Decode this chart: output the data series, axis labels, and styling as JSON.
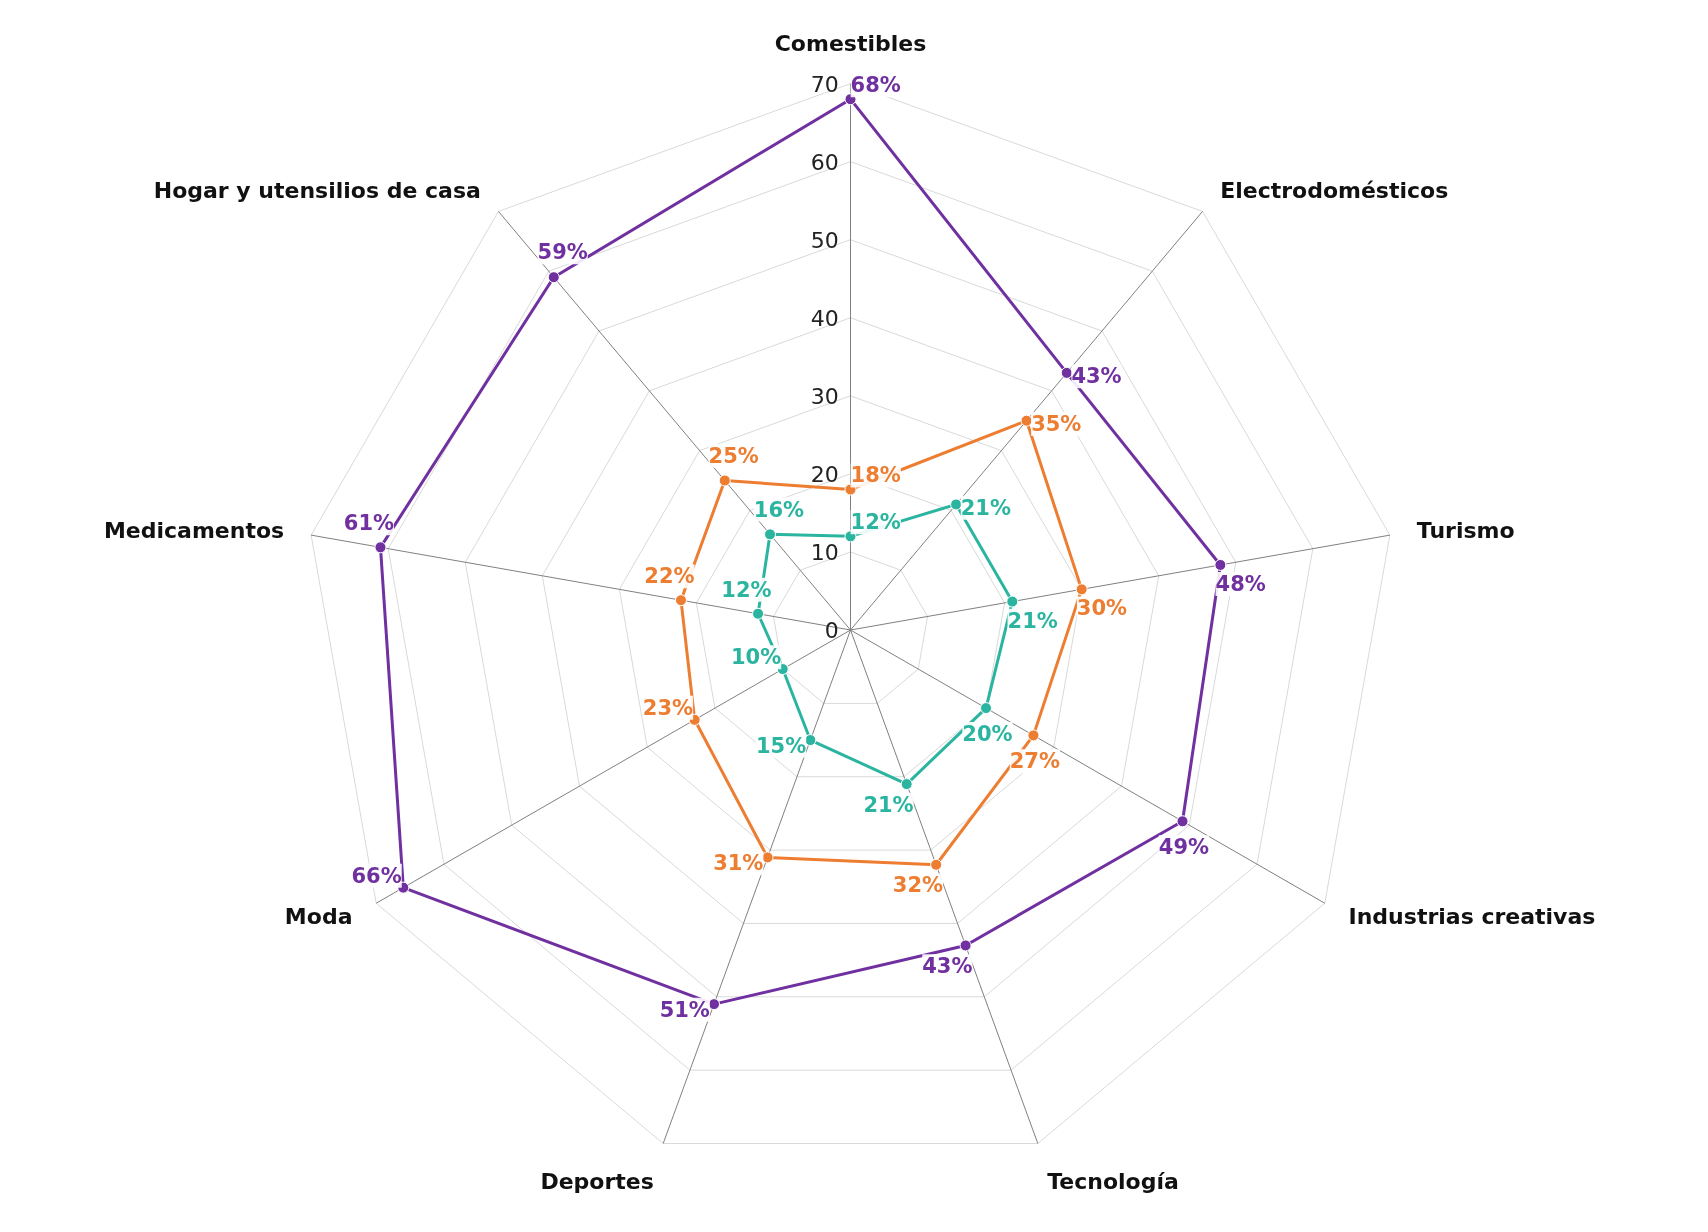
{
  "chart_data": {
    "type": "radar",
    "categories": [
      "Comestibles",
      "Electrodomésticos",
      "Turismo",
      "Industrias creativas",
      "Tecnología",
      "Deportes",
      "Moda",
      "Medicamentos",
      "Hogar y utensilios de casa"
    ],
    "series": [
      {
        "color": "#7030a0",
        "values": [
          68,
          43,
          48,
          49,
          43,
          51,
          66,
          61,
          59
        ],
        "value_labels": [
          "68%",
          "43%",
          "48%",
          "49%",
          "43%",
          "51%",
          "66%",
          "61%",
          "59%"
        ]
      },
      {
        "color": "#ed7d31",
        "values": [
          18,
          35,
          30,
          27,
          32,
          31,
          23,
          22,
          25
        ],
        "value_labels": [
          "18%",
          "35%",
          "30%",
          "27%",
          "32%",
          "31%",
          "23%",
          "22%",
          "25%"
        ]
      },
      {
        "color": "#2bb5a0",
        "values": [
          12,
          21,
          21,
          20,
          21,
          15,
          10,
          12,
          16
        ],
        "value_labels": [
          "12%",
          "21%",
          "21%",
          "20%",
          "21%",
          "15%",
          "10%",
          "12%",
          "16%"
        ]
      }
    ],
    "ylim": [
      0,
      70
    ],
    "yticks": [
      0,
      10,
      20,
      30,
      40,
      50,
      60,
      70
    ],
    "grid": true,
    "marker": "circle",
    "line_style": "solid"
  }
}
